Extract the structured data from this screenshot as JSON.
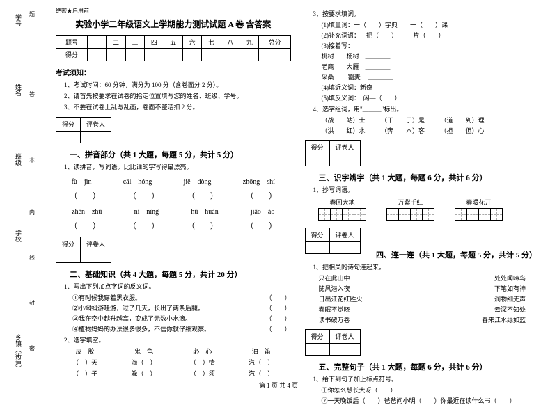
{
  "margin": {
    "labels": [
      "学号",
      "姓名",
      "班级",
      "学校",
      "乡镇（街道）"
    ],
    "dashmarks": [
      "题",
      "答",
      "本",
      "内",
      "线",
      "封",
      "密"
    ]
  },
  "header": {
    "confidential": "绝密★启用前",
    "title": "实验小学二年级语文上学期能力测试试题 A 卷 含答案"
  },
  "numTable": {
    "cols": [
      "题号",
      "一",
      "二",
      "三",
      "四",
      "五",
      "六",
      "七",
      "八",
      "九",
      "总分"
    ],
    "row2": "得分"
  },
  "rules": {
    "head": "考试须知：",
    "items": [
      "1、考试时间：60 分钟，满分为 100 分（含卷面分 2 分）。",
      "2、请首先按要求在试卷的指定位置填写您的姓名、班级、学号。",
      "3、不要在试卷上乱写乱画，卷面不整洁扣 2 分。"
    ]
  },
  "scoreBox": {
    "c1": "得分",
    "c2": "评卷人"
  },
  "s1": {
    "title": "一、拼音部分（共 1 大题，每题 5 分，共计 5 分）",
    "q": "1、读拼音，写词语。比比谁的字写得最漂亮。",
    "row1": [
      "fù　jìn",
      "cǎi　hóng",
      "jiě　dòng",
      "zhōng　shí"
    ],
    "row2": [
      "zhēn　zhū",
      "ní　nìng",
      "hū　huàn",
      "jiāo　ào"
    ]
  },
  "s2": {
    "title": "二、基础知识（共 4 大题，每题 5 分，共计 20 分）",
    "q1": "1、写出下列加点字词的反义词。",
    "q1items": [
      "①有时候我穿着黑衣服。",
      "②小蝌蚪游哇游，过了几天，长出了两条后腿。",
      "③我在空中越升越高，变成了无数小水滴。",
      "④植物妈妈的办法很多很多，不信你就仔细观察。"
    ],
    "q2": "2、选字填空。",
    "q2row1": [
      "皮　胶",
      "鬼　龟",
      "必　心",
      "油　笛"
    ],
    "q2row2": [
      "（　）天",
      "海（　）",
      "（　）情",
      "汽（　）"
    ],
    "q2row3": [
      "（　）子",
      "躲（　）",
      "（　）须",
      "汽（　）"
    ]
  },
  "s3": {
    "q3": "3、按要求填词。",
    "q3items": [
      "(1)填量词：一（　　）字典　　一（　　）课",
      "(2)补充词语：一把（　　）　　一片（　　）",
      "(3)接着写：",
      "桃树　　杨树　＿＿＿＿",
      "老鹰　　大雁　＿＿＿＿",
      "采桑　　 割麦 　＿＿＿＿",
      "(4)填近义词：新奇—＿＿＿＿",
      "(5)填反义词：　闲—（　　）"
    ],
    "q4": "4、选字组词，用\"＿＿＿\"标出。",
    "q4items": [
      "（战　　站）士　　　（干　　于）是　　　（道　　到）理",
      "（洪　　红）水　　　（奔　　本）客　　　（担　　但）心"
    ]
  },
  "s4": {
    "title": "三、识字辨字（共 1 大题，每题 6 分，共计 6 分）",
    "q": "1、抄写词语。",
    "words": [
      "春回大地",
      "万紫千红",
      "春暖花开"
    ]
  },
  "s5": {
    "title": "四、连一连（共 1 大题，每题 5 分，共计 5 分）",
    "q": "1、把相关的诗句连起来。",
    "pairs": [
      [
        "只在此山中",
        "处处闻啼鸟"
      ],
      [
        "随风潜入夜",
        "下笔如有神"
      ],
      [
        "日出江花红胜火",
        "润物细无声"
      ],
      [
        "春眠不觉晓",
        "云深不知处"
      ],
      [
        "读书破万卷",
        "春来江水绿如蓝"
      ]
    ]
  },
  "s6": {
    "title": "五、完整句子（共 1 大题，每题 6 分，共计 6 分）",
    "q": "1、给下列句子加上标点符号。",
    "items": [
      "①你怎么想长大呀（　　）",
      "②一天晚饭后（　　）爸爸问小明（　　）你最近在读什么书（　　）"
    ]
  },
  "footer": "第 1 页 共 4 页"
}
